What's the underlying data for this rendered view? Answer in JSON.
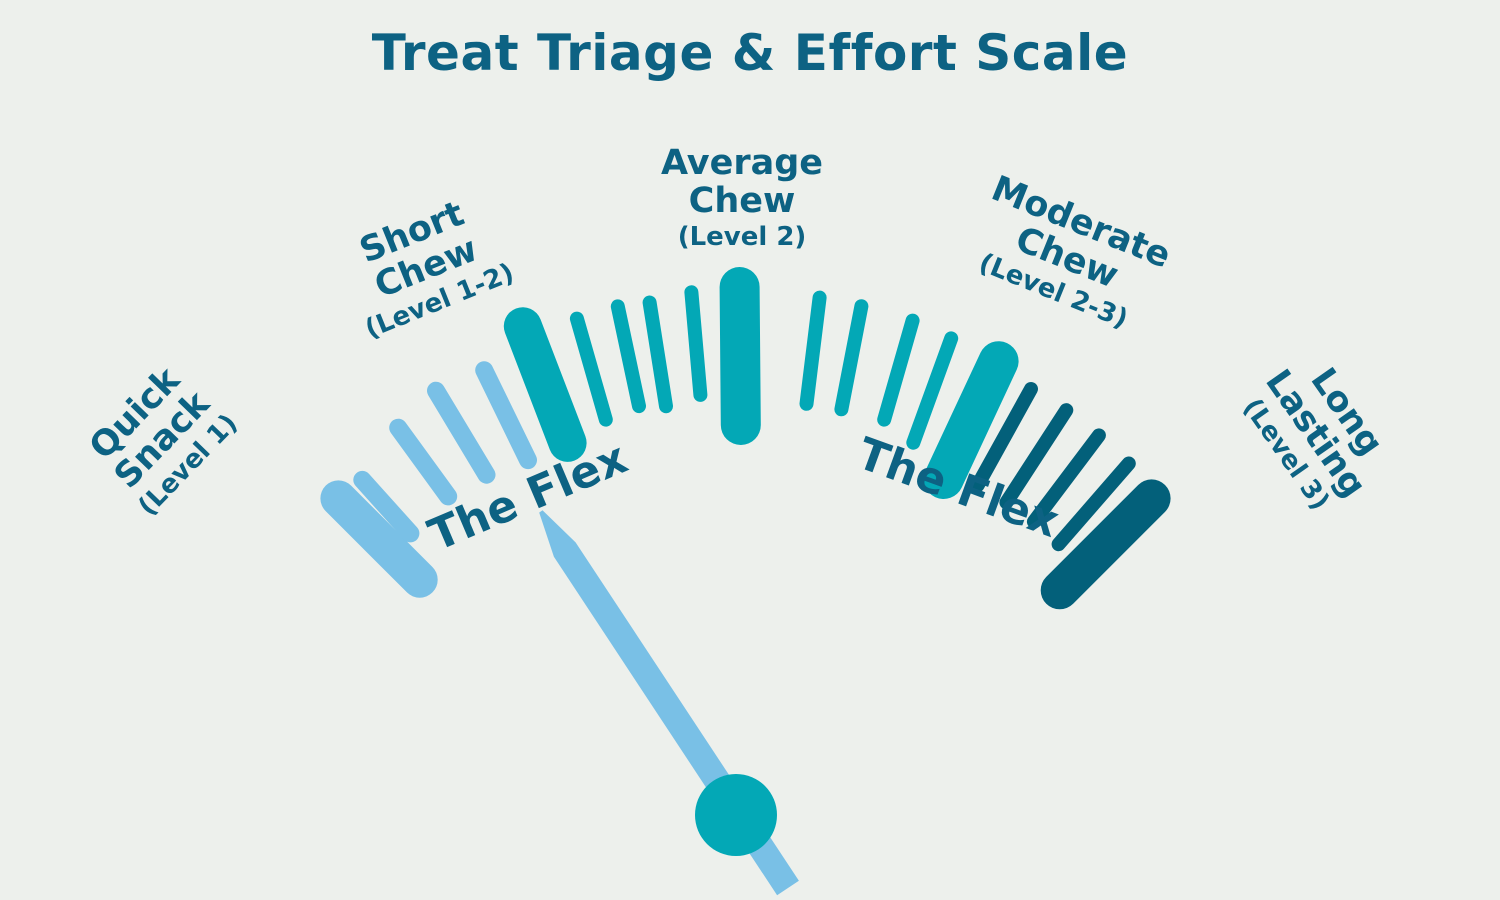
{
  "title": "Treat Triage & Effort Scale",
  "scale_labels": [
    {
      "name_lines": [
        "Quick",
        "Snack"
      ],
      "level": "(Level 1)"
    },
    {
      "name_lines": [
        "Short",
        "Chew"
      ],
      "level": "(Level 1-2)"
    },
    {
      "name_lines": [
        "Average",
        "Chew"
      ],
      "level": "(Level 2)"
    },
    {
      "name_lines": [
        "Moderate",
        "Chew"
      ],
      "level": "(Level 2-3)"
    },
    {
      "name_lines": [
        "Long",
        "Lasting"
      ],
      "level": "(Level 3)"
    }
  ],
  "flex_labels": [
    "The Flex",
    "The Flex"
  ],
  "colors": {
    "background": "#edf0ec",
    "text": "#0d6283",
    "light_blue": "#79c0e6",
    "teal": "#03a8b6",
    "dark_teal": "#03607a"
  },
  "needle": {
    "color": "light_blue",
    "hub_color": "teal"
  }
}
